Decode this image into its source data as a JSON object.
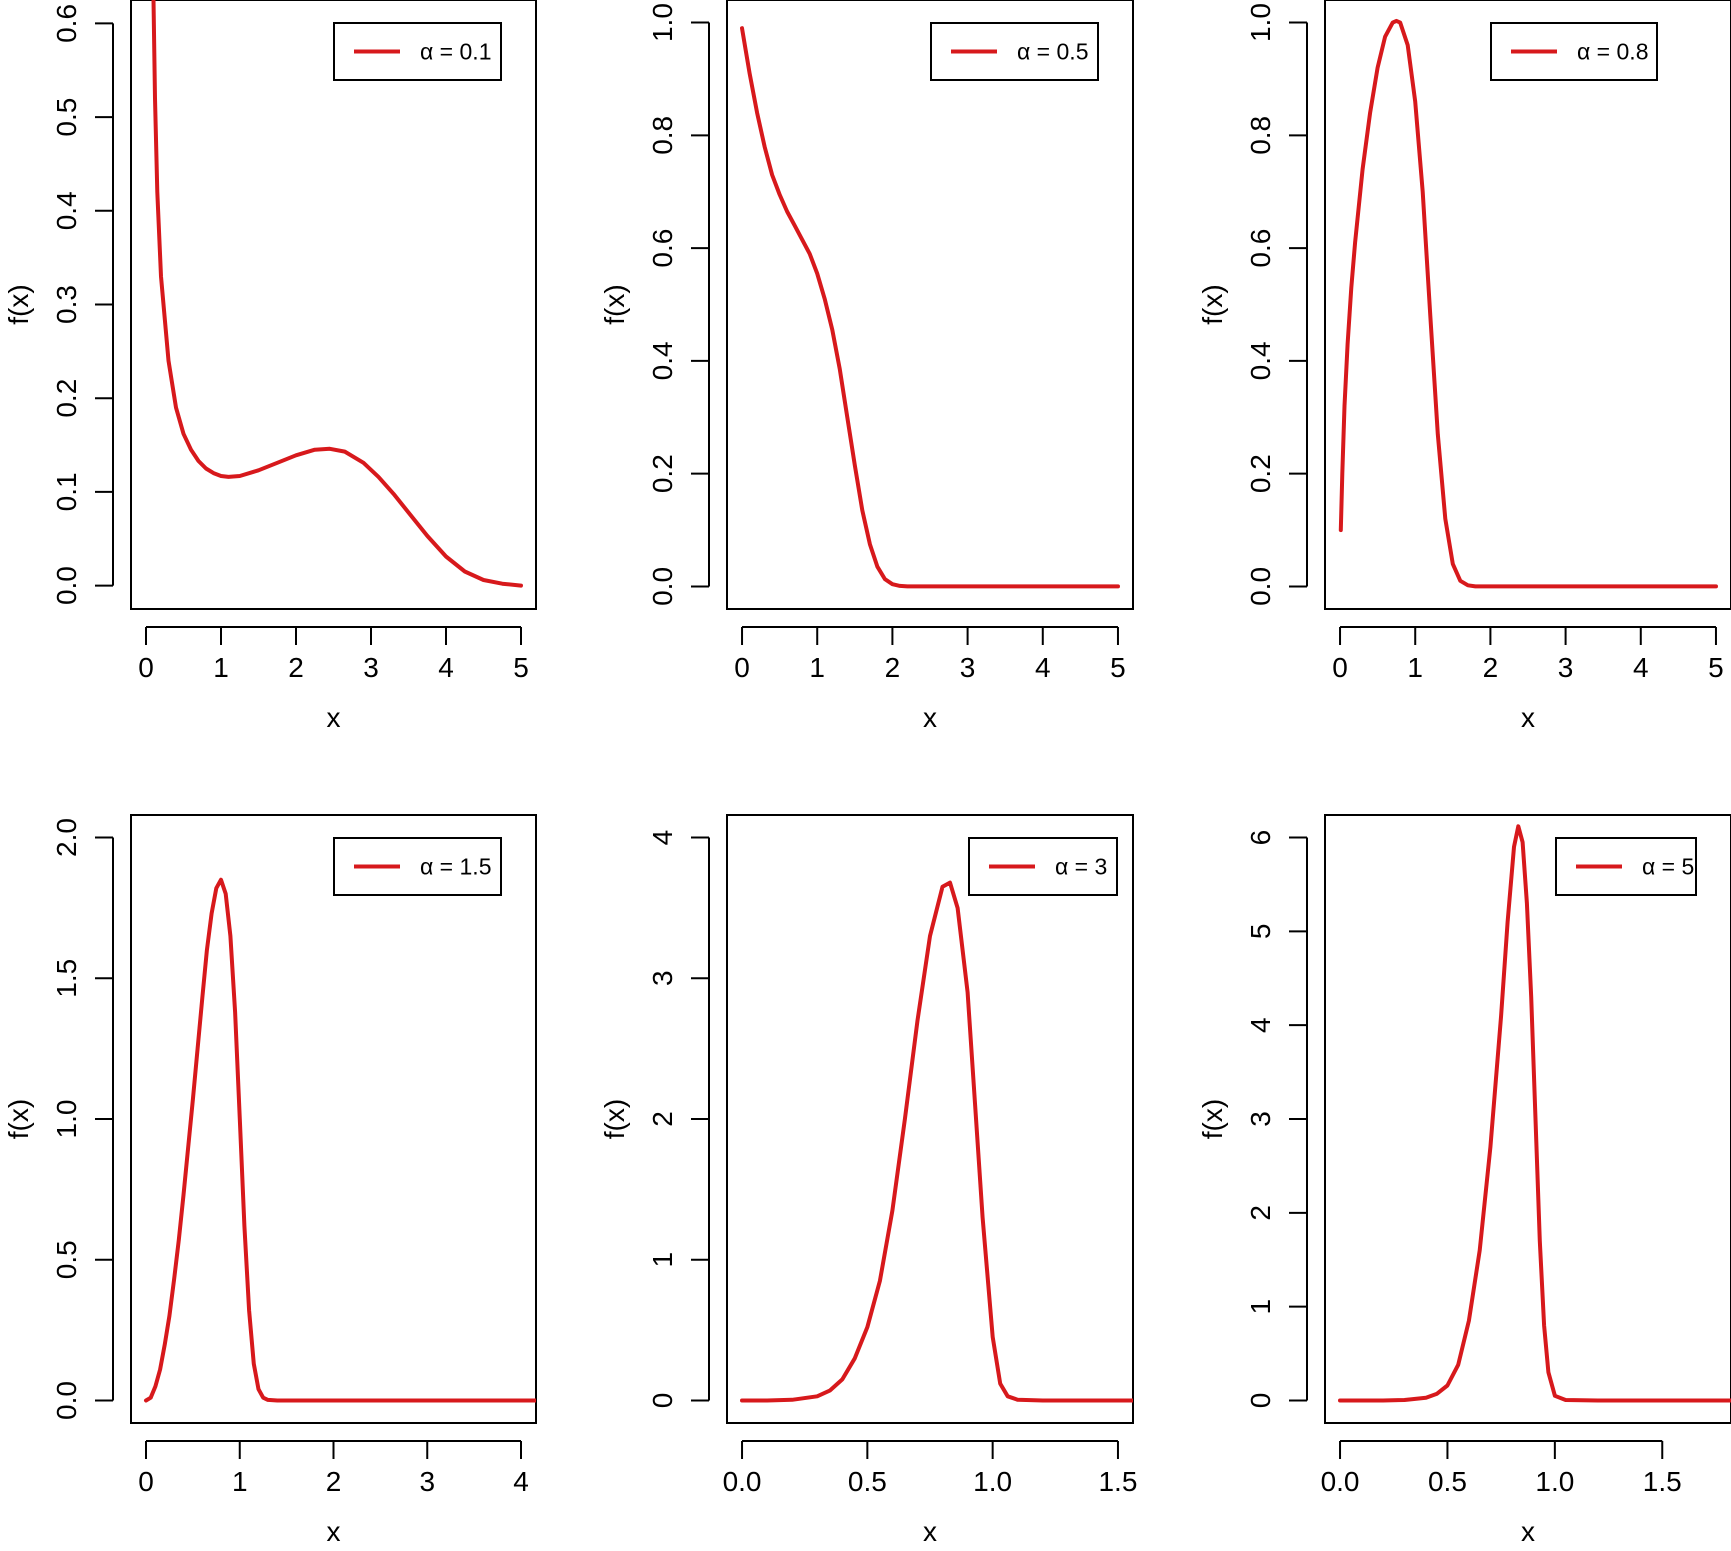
{
  "colors": {
    "curve": "#d7191c",
    "axis": "#000000",
    "background": "#ffffff"
  },
  "chart_data": [
    {
      "type": "line",
      "legend": "α = 0.1",
      "legend_position": "top-right",
      "xlabel": "x",
      "ylabel": "f(x)",
      "xlim": [
        -0.2,
        5.2
      ],
      "ylim": [
        -0.025,
        0.625
      ],
      "xticks": [
        0,
        1,
        2,
        3,
        4,
        5
      ],
      "xtick_labels": [
        "0",
        "1",
        "2",
        "3",
        "4",
        "5"
      ],
      "yticks": [
        0.0,
        0.1,
        0.2,
        0.3,
        0.4,
        0.5,
        0.6
      ],
      "ytick_labels": [
        "0.0",
        "0.1",
        "0.2",
        "0.3",
        "0.4",
        "0.5",
        "0.6"
      ],
      "x": [
        0.1,
        0.12,
        0.15,
        0.2,
        0.3,
        0.4,
        0.5,
        0.6,
        0.7,
        0.8,
        0.9,
        1.0,
        1.1,
        1.25,
        1.5,
        1.75,
        2.0,
        2.25,
        2.45,
        2.65,
        2.9,
        3.1,
        3.3,
        3.5,
        3.75,
        4.0,
        4.25,
        4.5,
        4.75,
        5.0
      ],
      "y": [
        0.625,
        0.52,
        0.42,
        0.33,
        0.24,
        0.19,
        0.162,
        0.145,
        0.133,
        0.125,
        0.12,
        0.117,
        0.116,
        0.117,
        0.123,
        0.131,
        0.139,
        0.145,
        0.146,
        0.143,
        0.131,
        0.116,
        0.098,
        0.078,
        0.053,
        0.031,
        0.015,
        0.006,
        0.002,
        0.0
      ]
    },
    {
      "type": "line",
      "legend": "α = 0.5",
      "legend_position": "top-right",
      "xlabel": "x",
      "ylabel": "f(x)",
      "xlim": [
        -0.2,
        5.2
      ],
      "ylim": [
        -0.04,
        1.04
      ],
      "xticks": [
        0,
        1,
        2,
        3,
        4,
        5
      ],
      "xtick_labels": [
        "0",
        "1",
        "2",
        "3",
        "4",
        "5"
      ],
      "yticks": [
        0.0,
        0.2,
        0.4,
        0.6,
        0.8,
        1.0
      ],
      "ytick_labels": [
        "0.0",
        "0.2",
        "0.4",
        "0.6",
        "0.8",
        "1.0"
      ],
      "x": [
        0.0,
        0.05,
        0.1,
        0.2,
        0.3,
        0.4,
        0.5,
        0.6,
        0.7,
        0.8,
        0.9,
        1.0,
        1.1,
        1.2,
        1.3,
        1.4,
        1.5,
        1.6,
        1.7,
        1.8,
        1.9,
        2.0,
        2.1,
        2.2,
        2.5,
        3.0,
        4.0,
        5.0
      ],
      "y": [
        0.99,
        0.95,
        0.91,
        0.84,
        0.78,
        0.73,
        0.695,
        0.665,
        0.64,
        0.615,
        0.59,
        0.555,
        0.51,
        0.455,
        0.385,
        0.3,
        0.215,
        0.135,
        0.075,
        0.035,
        0.013,
        0.004,
        0.001,
        0.0,
        0.0,
        0.0,
        0.0,
        0.0
      ]
    },
    {
      "type": "line",
      "legend": "α = 0.8",
      "legend_position": "top-right",
      "xlabel": "x",
      "ylabel": "f(x)",
      "xlim": [
        -0.2,
        5.2
      ],
      "ylim": [
        -0.04,
        1.04
      ],
      "xticks": [
        0,
        1,
        2,
        3,
        4,
        5
      ],
      "xtick_labels": [
        "0",
        "1",
        "2",
        "3",
        "4",
        "5"
      ],
      "yticks": [
        0.0,
        0.2,
        0.4,
        0.6,
        0.8,
        1.0
      ],
      "ytick_labels": [
        "0.0",
        "0.2",
        "0.4",
        "0.6",
        "0.8",
        "1.0"
      ],
      "x": [
        0.01,
        0.03,
        0.06,
        0.1,
        0.15,
        0.2,
        0.3,
        0.4,
        0.5,
        0.6,
        0.7,
        0.75,
        0.8,
        0.9,
        1.0,
        1.1,
        1.2,
        1.3,
        1.4,
        1.5,
        1.6,
        1.7,
        1.8,
        2.0,
        3.0,
        4.0,
        5.0
      ],
      "y": [
        0.1,
        0.2,
        0.32,
        0.43,
        0.53,
        0.61,
        0.74,
        0.84,
        0.92,
        0.975,
        1.0,
        1.003,
        1.0,
        0.96,
        0.86,
        0.7,
        0.48,
        0.27,
        0.12,
        0.04,
        0.01,
        0.002,
        0.0,
        0.0,
        0.0,
        0.0,
        0.0
      ]
    },
    {
      "type": "line",
      "legend": "α = 1.5",
      "legend_position": "top-right",
      "xlabel": "x",
      "ylabel": "f(x)",
      "xlim": [
        -0.16,
        4.16
      ],
      "ylim": [
        -0.08,
        2.08
      ],
      "xticks": [
        0,
        1,
        2,
        3,
        4
      ],
      "xtick_labels": [
        "0",
        "1",
        "2",
        "3",
        "4"
      ],
      "yticks": [
        0.0,
        0.5,
        1.0,
        1.5,
        2.0
      ],
      "ytick_labels": [
        "0.0",
        "0.5",
        "1.0",
        "1.5",
        "2.0"
      ],
      "x": [
        0.0,
        0.05,
        0.1,
        0.15,
        0.2,
        0.25,
        0.3,
        0.35,
        0.4,
        0.45,
        0.5,
        0.55,
        0.6,
        0.65,
        0.7,
        0.75,
        0.8,
        0.85,
        0.9,
        0.95,
        1.0,
        1.05,
        1.1,
        1.15,
        1.2,
        1.25,
        1.3,
        1.4,
        1.6,
        2.0,
        3.0,
        4.16
      ],
      "y": [
        0.0,
        0.01,
        0.05,
        0.11,
        0.2,
        0.3,
        0.43,
        0.57,
        0.73,
        0.9,
        1.07,
        1.25,
        1.43,
        1.6,
        1.73,
        1.82,
        1.85,
        1.8,
        1.65,
        1.38,
        1.0,
        0.62,
        0.32,
        0.13,
        0.04,
        0.01,
        0.002,
        0.0,
        0.0,
        0.0,
        0.0,
        0.0
      ]
    },
    {
      "type": "line",
      "legend": "α = 3",
      "legend_position": "top-right",
      "xlabel": "x",
      "ylabel": "f(x)",
      "xlim": [
        -0.06,
        1.56
      ],
      "ylim": [
        -0.16,
        4.16
      ],
      "xticks": [
        0.0,
        0.5,
        1.0,
        1.5
      ],
      "xtick_labels": [
        "0.0",
        "0.5",
        "1.0",
        "1.5"
      ],
      "yticks": [
        0,
        1,
        2,
        3,
        4
      ],
      "ytick_labels": [
        "0",
        "1",
        "2",
        "3",
        "4"
      ],
      "x": [
        0.0,
        0.1,
        0.2,
        0.3,
        0.35,
        0.4,
        0.45,
        0.5,
        0.55,
        0.6,
        0.65,
        0.7,
        0.75,
        0.8,
        0.83,
        0.86,
        0.9,
        0.93,
        0.96,
        1.0,
        1.03,
        1.06,
        1.1,
        1.2,
        1.56
      ],
      "y": [
        0.0,
        0.0,
        0.005,
        0.03,
        0.07,
        0.15,
        0.3,
        0.52,
        0.85,
        1.35,
        2.0,
        2.7,
        3.3,
        3.65,
        3.68,
        3.5,
        2.9,
        2.1,
        1.3,
        0.45,
        0.12,
        0.03,
        0.005,
        0.0,
        0.0
      ]
    },
    {
      "type": "line",
      "legend": "α = 5",
      "legend_position": "top-right",
      "xlabel": "x",
      "ylabel": "f(x)",
      "xlim": [
        -0.07,
        1.82
      ],
      "ylim": [
        -0.24,
        6.24
      ],
      "xticks": [
        0.0,
        0.5,
        1.0,
        1.5
      ],
      "xtick_labels": [
        "0.0",
        "0.5",
        "1.0",
        "1.5"
      ],
      "yticks": [
        0,
        1,
        2,
        3,
        4,
        5,
        6
      ],
      "ytick_labels": [
        "0",
        "1",
        "2",
        "3",
        "4",
        "5",
        "6"
      ],
      "x": [
        0.0,
        0.2,
        0.3,
        0.4,
        0.45,
        0.5,
        0.55,
        0.6,
        0.65,
        0.7,
        0.75,
        0.78,
        0.81,
        0.83,
        0.85,
        0.87,
        0.89,
        0.91,
        0.93,
        0.95,
        0.97,
        1.0,
        1.05,
        1.2,
        1.82
      ],
      "y": [
        0.0,
        0.0,
        0.005,
        0.03,
        0.07,
        0.16,
        0.38,
        0.85,
        1.6,
        2.7,
        4.1,
        5.1,
        5.9,
        6.12,
        5.95,
        5.3,
        4.3,
        3.0,
        1.7,
        0.8,
        0.3,
        0.05,
        0.005,
        0.0,
        0.0
      ]
    }
  ]
}
